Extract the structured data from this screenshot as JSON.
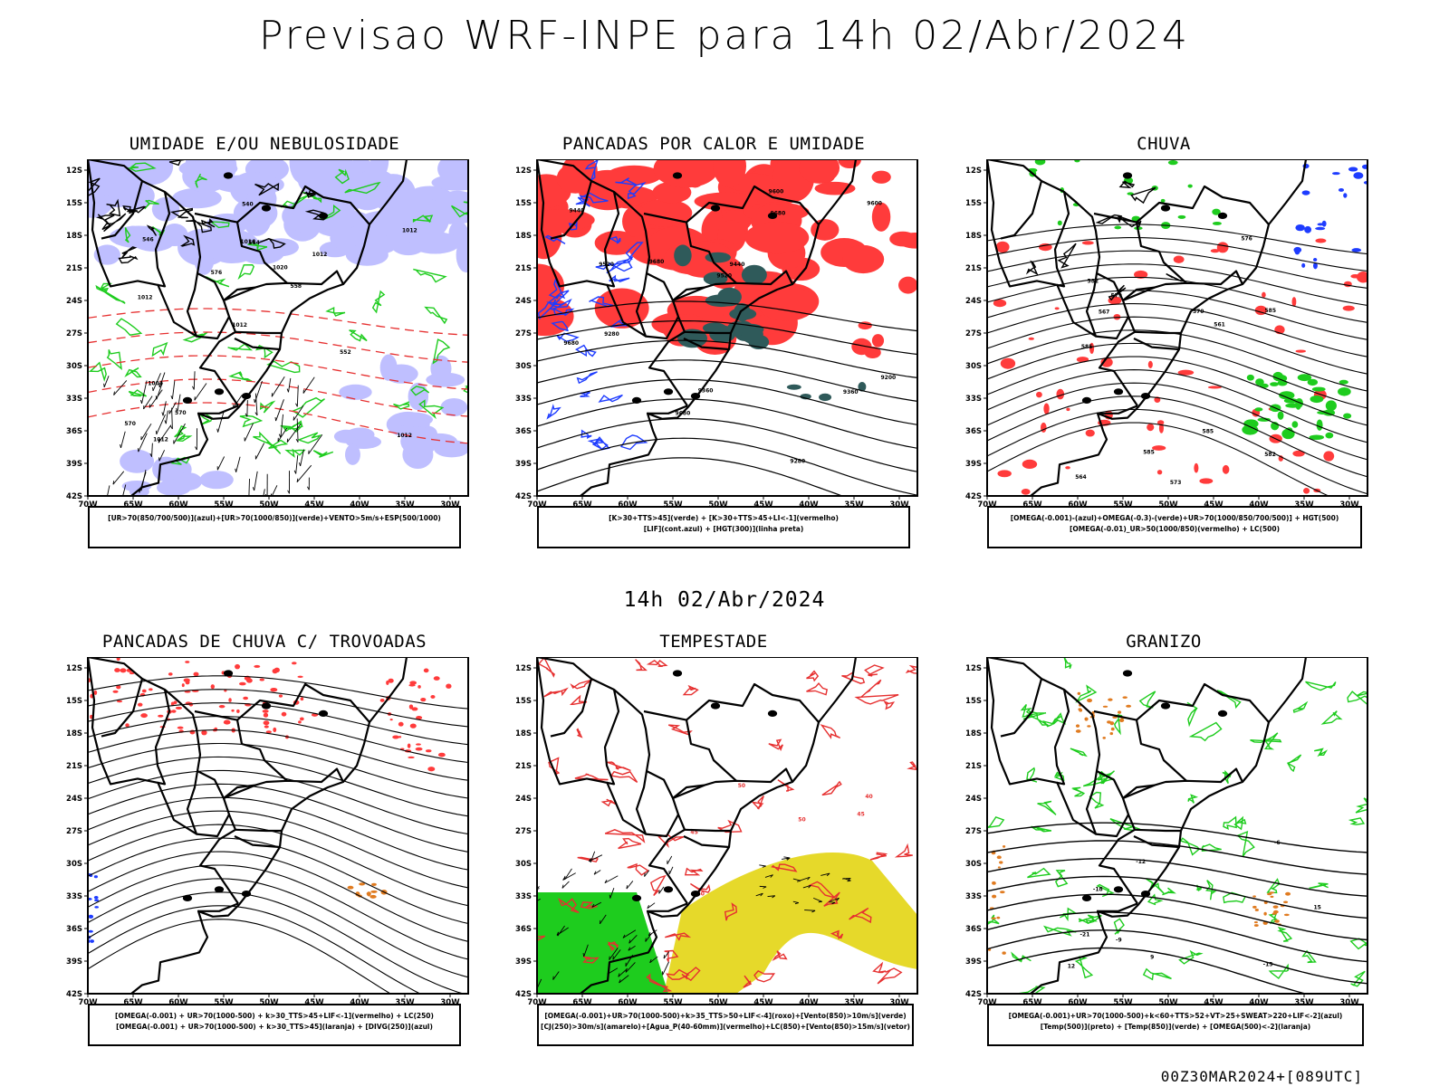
{
  "header": {
    "title": "Previsao WRF-INPE  para 14h 02/Abr/2024",
    "mid_title": "14h 02/Abr/2024",
    "footer": "00Z30MAR2024+[089UTC]"
  },
  "axes": {
    "lat_ticks": [
      "12S",
      "15S",
      "18S",
      "21S",
      "24S",
      "27S",
      "30S",
      "33S",
      "36S",
      "39S",
      "42S"
    ],
    "lon_ticks": [
      "70W",
      "65W",
      "60W",
      "55W",
      "50W",
      "45W",
      "40W",
      "35W",
      "30W"
    ]
  },
  "colors": {
    "blue_fill": "#b4b4ff",
    "green": "#1ecc1e",
    "red": "#ff3b3b",
    "dark_teal": "#2f5a5a",
    "yellow": "#e6d92a",
    "orange": "#e07b20",
    "blue": "#1e3cff"
  },
  "chart_data": [
    {
      "type": "map",
      "title": "UMIDADE E/OU NEBULOSIDADE",
      "legend": [
        "[UR>70(850/700/500)](azul)+[UR>70(1000/850)](verde)+VENTO>5m/s+ESP(500/1000)"
      ],
      "contour_labels": [
        "1012",
        "1012",
        "1012",
        "1012",
        "1012",
        "1012",
        "1016",
        "1020",
        "1004",
        "576",
        "570",
        "570",
        "564",
        "558",
        "552",
        "546",
        "540"
      ]
    },
    {
      "type": "map",
      "title": "PANCADAS POR CALOR E UMIDADE",
      "legend": [
        "[K>30+TTS>45](verde) + [K>30+TTS>45+LI<-1](vermelho)",
        "[LIF](cont.azul) + [HGT(300)](linha preta)"
      ],
      "contour_labels": [
        "9680",
        "9680",
        "9680",
        "9680",
        "9600",
        "9600",
        "9520",
        "9520",
        "9440",
        "9440",
        "9360",
        "9360",
        "9280",
        "9280",
        "9200"
      ]
    },
    {
      "type": "map",
      "title": "CHUVA",
      "legend": [
        "[OMEGA(-0.001)-(azul)+OMEGA(-0.3)-(verde)+UR>70(1000/850/700/500)] + HGT(500)",
        "[OMEGA(-0.01)_UR>50(1000/850)(vermelho) + LC(500)"
      ],
      "contour_labels": [
        "585",
        "585",
        "585",
        "585",
        "582",
        "582",
        "579",
        "576",
        "573",
        "570",
        "567",
        "564",
        "561"
      ]
    },
    {
      "type": "map",
      "title": "PANCADAS DE CHUVA C/ TROVOADAS",
      "legend": [
        "[OMEGA(-0.001) + UR>70(1000-500) + k>30_TTS>45+LIF<-1](vermelho) + LC(250)",
        "[OMEGA(-0.001) + UR>70(1000-500) + k>30_TTS>45](laranja) + [DIVG(250)](azul)"
      ]
    },
    {
      "type": "map",
      "title": "TEMPESTADE",
      "legend": [
        "[OMEGA(-0.001)+UR>70(1000-500)+k>35_TTS>50+LIF<-4](roxo)+[Vento(850)>10m/s](verde)",
        "[CJ(250)>30m/s](amarelo)+[Agua_P(40-60mm)](vermelho)+LC(850)+[Vento(850)>15m/s](vetor)"
      ],
      "contour_labels": [
        "50",
        "50",
        "45",
        "40",
        "45",
        "50"
      ]
    },
    {
      "type": "map",
      "title": "GRANIZO",
      "legend": [
        "[OMEGA(-0.001)+UR>70(1000-500)+k<60+TTS>52+VT>25+SWEAT>220+LIF<-2](azul)",
        "[Temp(500)](preto) + [Temp(850)](verde) + [OMEGA(500)<-2](laranja)"
      ],
      "contour_labels": [
        "-6",
        "-9",
        "-12",
        "-15",
        "-18",
        "-21",
        "15",
        "12",
        "9"
      ]
    }
  ]
}
